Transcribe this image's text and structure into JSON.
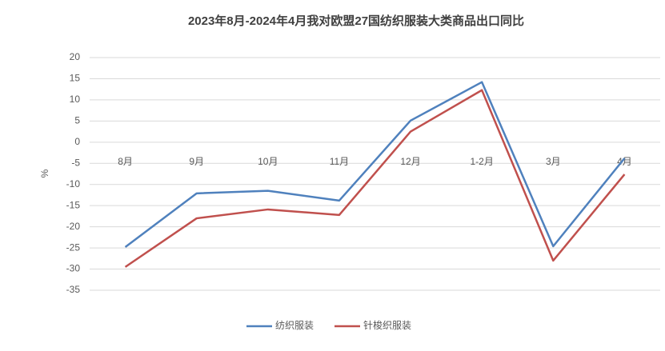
{
  "chart_data": {
    "type": "line",
    "title": "2023年8月-2024年4月我对欧盟27国纺织服装大类商品出口同比",
    "y_label": "%",
    "categories": [
      "8月",
      "9月",
      "10月",
      "11月",
      "12月",
      "1-2月",
      "3月",
      "4月"
    ],
    "series": [
      {
        "name": "纺织服装",
        "color": "#4f81bd",
        "values": [
          -24.8,
          -12.1,
          -11.5,
          -13.8,
          5.1,
          14.2,
          -24.6,
          -3.8
        ]
      },
      {
        "name": "针梭织服装",
        "color": "#c0504d",
        "values": [
          -29.5,
          -18,
          -15.9,
          -17.2,
          2.5,
          12.3,
          -28,
          -7.6
        ]
      }
    ],
    "ylim": [
      -35,
      20
    ],
    "yticks": [
      -35,
      -30,
      -25,
      -20,
      -15,
      -10,
      -5,
      0,
      5,
      10,
      15,
      20
    ],
    "grid": true,
    "legend": "bottom"
  }
}
